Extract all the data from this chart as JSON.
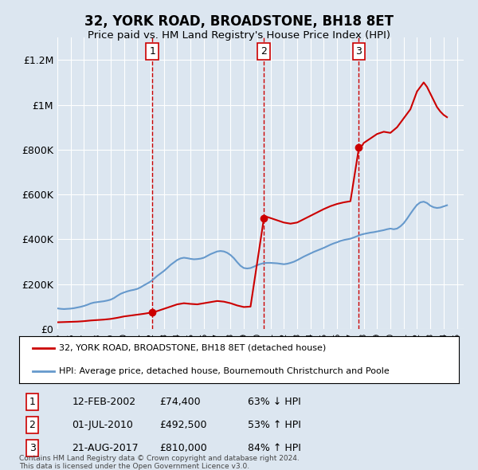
{
  "title": "32, YORK ROAD, BROADSTONE, BH18 8ET",
  "subtitle": "Price paid vs. HM Land Registry's House Price Index (HPI)",
  "background_color": "#dce6f0",
  "plot_bg_color": "#dce6f0",
  "ylabel": "",
  "ylim": [
    0,
    1300000
  ],
  "yticks": [
    0,
    200000,
    400000,
    600000,
    800000,
    1000000,
    1200000
  ],
  "ytick_labels": [
    "£0",
    "£200K",
    "£400K",
    "£600K",
    "£800K",
    "£1M",
    "£1.2M"
  ],
  "sale_dates": [
    "2002-02-12",
    "2010-07-01",
    "2017-08-21"
  ],
  "sale_prices": [
    74400,
    492500,
    810000
  ],
  "sale_labels": [
    "1",
    "2",
    "3"
  ],
  "hpi_line_color": "#6699cc",
  "price_line_color": "#cc0000",
  "dashed_line_color": "#cc0000",
  "legend_label_price": "32, YORK ROAD, BROADSTONE, BH18 8ET (detached house)",
  "legend_label_hpi": "HPI: Average price, detached house, Bournemouth Christchurch and Poole",
  "table_rows": [
    [
      "1",
      "12-FEB-2002",
      "£74,400",
      "63% ↓ HPI"
    ],
    [
      "2",
      "01-JUL-2010",
      "£492,500",
      "53% ↑ HPI"
    ],
    [
      "3",
      "21-AUG-2017",
      "£810,000",
      "84% ↑ HPI"
    ]
  ],
  "footnote": "Contains HM Land Registry data © Crown copyright and database right 2024.\nThis data is licensed under the Open Government Licence v3.0.",
  "hpi_data": {
    "years": [
      1995.0,
      1995.25,
      1995.5,
      1995.75,
      1996.0,
      1996.25,
      1996.5,
      1996.75,
      1997.0,
      1997.25,
      1997.5,
      1997.75,
      1998.0,
      1998.25,
      1998.5,
      1998.75,
      1999.0,
      1999.25,
      1999.5,
      1999.75,
      2000.0,
      2000.25,
      2000.5,
      2000.75,
      2001.0,
      2001.25,
      2001.5,
      2001.75,
      2002.0,
      2002.25,
      2002.5,
      2002.75,
      2003.0,
      2003.25,
      2003.5,
      2003.75,
      2004.0,
      2004.25,
      2004.5,
      2004.75,
      2005.0,
      2005.25,
      2005.5,
      2005.75,
      2006.0,
      2006.25,
      2006.5,
      2006.75,
      2007.0,
      2007.25,
      2007.5,
      2007.75,
      2008.0,
      2008.25,
      2008.5,
      2008.75,
      2009.0,
      2009.25,
      2009.5,
      2009.75,
      2010.0,
      2010.25,
      2010.5,
      2010.75,
      2011.0,
      2011.25,
      2011.5,
      2011.75,
      2012.0,
      2012.25,
      2012.5,
      2012.75,
      2013.0,
      2013.25,
      2013.5,
      2013.75,
      2014.0,
      2014.25,
      2014.5,
      2014.75,
      2015.0,
      2015.25,
      2015.5,
      2015.75,
      2016.0,
      2016.25,
      2016.5,
      2016.75,
      2017.0,
      2017.25,
      2017.5,
      2017.75,
      2018.0,
      2018.25,
      2018.5,
      2018.75,
      2019.0,
      2019.25,
      2019.5,
      2019.75,
      2020.0,
      2020.25,
      2020.5,
      2020.75,
      2021.0,
      2021.25,
      2021.5,
      2021.75,
      2022.0,
      2022.25,
      2022.5,
      2022.75,
      2023.0,
      2023.25,
      2023.5,
      2023.75,
      2024.0,
      2024.25
    ],
    "values": [
      92000,
      90000,
      89000,
      90000,
      91000,
      93000,
      96000,
      99000,
      103000,
      108000,
      114000,
      118000,
      120000,
      122000,
      124000,
      127000,
      131000,
      138000,
      148000,
      157000,
      163000,
      168000,
      172000,
      175000,
      179000,
      186000,
      195000,
      203000,
      212000,
      224000,
      237000,
      248000,
      259000,
      272000,
      286000,
      297000,
      308000,
      315000,
      318000,
      316000,
      313000,
      311000,
      312000,
      314000,
      318000,
      326000,
      334000,
      340000,
      346000,
      348000,
      346000,
      340000,
      330000,
      316000,
      298000,
      282000,
      272000,
      270000,
      272000,
      278000,
      285000,
      290000,
      294000,
      295000,
      295000,
      294000,
      293000,
      291000,
      289000,
      291000,
      295000,
      300000,
      307000,
      315000,
      323000,
      330000,
      337000,
      344000,
      350000,
      356000,
      362000,
      369000,
      376000,
      382000,
      387000,
      393000,
      397000,
      400000,
      403000,
      408000,
      414000,
      420000,
      424000,
      427000,
      430000,
      432000,
      435000,
      438000,
      441000,
      445000,
      448000,
      445000,
      448000,
      458000,
      472000,
      492000,
      514000,
      535000,
      554000,
      565000,
      568000,
      562000,
      550000,
      543000,
      540000,
      542000,
      547000,
      552000
    ]
  },
  "price_data": {
    "years": [
      1995.0,
      1995.5,
      1996.0,
      1996.5,
      1997.0,
      1997.5,
      1998.0,
      1998.5,
      1999.0,
      1999.5,
      2000.0,
      2000.5,
      2001.0,
      2001.5,
      2002.166,
      2002.5,
      2003.0,
      2003.5,
      2004.0,
      2004.5,
      2005.0,
      2005.5,
      2006.0,
      2006.5,
      2007.0,
      2007.5,
      2008.0,
      2008.5,
      2009.0,
      2009.5,
      2010.5,
      2010.75,
      2011.0,
      2011.5,
      2012.0,
      2012.5,
      2013.0,
      2013.5,
      2014.0,
      2014.5,
      2015.0,
      2015.5,
      2016.0,
      2016.5,
      2017.0,
      2017.64,
      2017.9,
      2018.0,
      2018.5,
      2019.0,
      2019.5,
      2020.0,
      2020.5,
      2021.0,
      2021.5,
      2022.0,
      2022.5,
      2022.75,
      2023.0,
      2023.25,
      2023.5,
      2023.75,
      2024.0,
      2024.25
    ],
    "values": [
      30000,
      31000,
      32000,
      33000,
      35000,
      38000,
      40000,
      42000,
      45000,
      50000,
      56000,
      60000,
      64000,
      68000,
      74400,
      80000,
      90000,
      100000,
      110000,
      115000,
      112000,
      110000,
      115000,
      120000,
      125000,
      122000,
      115000,
      105000,
      98000,
      100000,
      492500,
      500000,
      495000,
      485000,
      475000,
      470000,
      475000,
      490000,
      505000,
      520000,
      535000,
      548000,
      558000,
      565000,
      570000,
      810000,
      820000,
      830000,
      850000,
      870000,
      880000,
      875000,
      900000,
      940000,
      980000,
      1060000,
      1100000,
      1080000,
      1050000,
      1020000,
      990000,
      970000,
      955000,
      945000
    ]
  }
}
